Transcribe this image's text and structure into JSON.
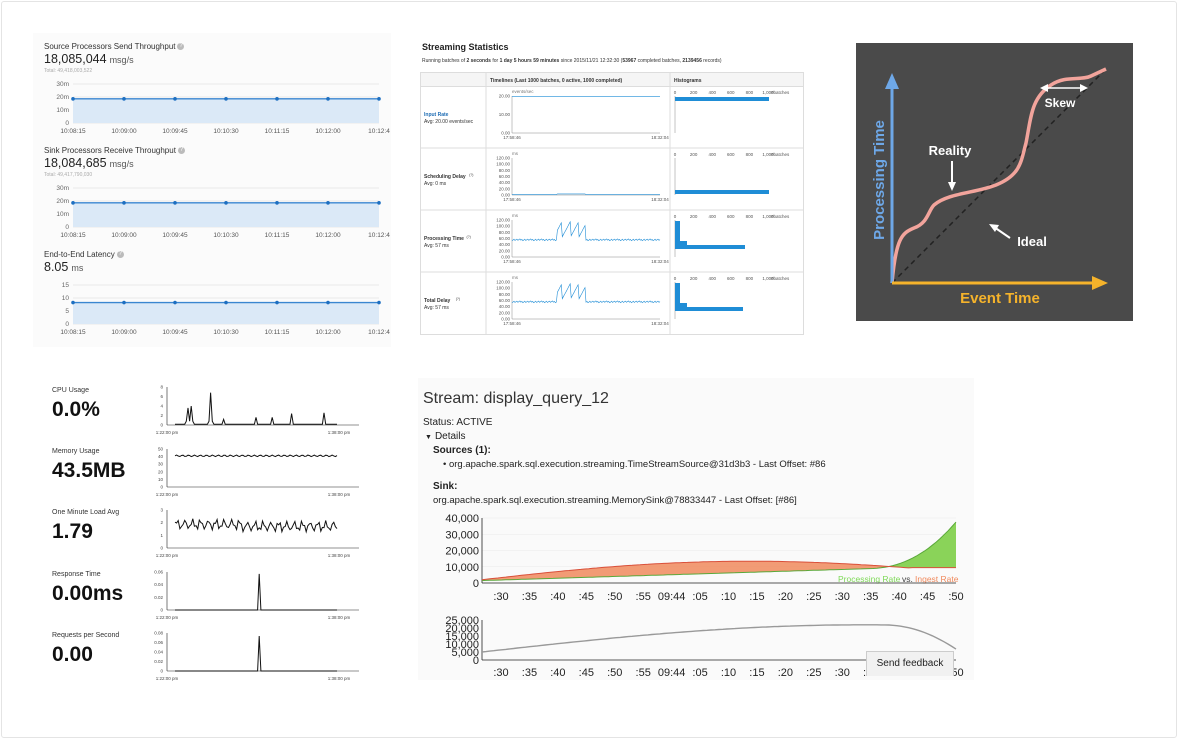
{
  "throughput": {
    "send": {
      "title": "Source Processors Send Throughput",
      "value": "18,085,044",
      "unit": "msg/s",
      "total": "Total: 49,418,003,522"
    },
    "receive": {
      "title": "Sink Processors Receive Throughput",
      "value": "18,084,685",
      "unit": "msg/s",
      "total": "Total: 49,417,790,030"
    },
    "latency": {
      "title": "End-to-End Latency",
      "value": "8.05",
      "unit": "ms"
    },
    "y_ticks_msg": [
      "30m",
      "20m",
      "10m",
      "0"
    ],
    "y_ticks_lat": [
      "15",
      "10",
      "5",
      "0"
    ],
    "x_ticks": [
      "10:08:15",
      "10:09:00",
      "10:09:45",
      "10:10:30",
      "10:11:15",
      "10:12:00",
      "10:12:4"
    ]
  },
  "streaming": {
    "title": "Streaming Statistics",
    "sub_prefix": "Running batches of ",
    "sub_batch": "2 seconds",
    "sub_mid1": " for ",
    "sub_duration": "1 day 5 hours 59 minutes",
    "sub_mid2": " since 2015/11/21 12:32:30 (",
    "sub_completed": "53967",
    "sub_mid3": " completed batches, ",
    "sub_records": "2139456",
    "sub_end": " records)",
    "col_timelines": "Timelines (Last 1000 batches, 0 active, 1000 completed)",
    "col_histograms": "Histograms",
    "rows": [
      {
        "name": "Input Rate",
        "avg": "Avg: 20.00 events/sec",
        "unit": "events/sec",
        "y_ticks": [
          "20.00",
          "10.00",
          "0.00"
        ]
      },
      {
        "name": "Scheduling Delay",
        "sup": "(?)",
        "avg": "Avg: 0 ms",
        "unit": "ms",
        "y_ticks": [
          "120.00",
          "100.00",
          "80.00",
          "60.00",
          "40.00",
          "20.00",
          "0.00"
        ]
      },
      {
        "name": "Processing Time",
        "sup": "(?)",
        "avg": "Avg: 57 ms",
        "unit": "ms",
        "y_ticks": [
          "120.00",
          "100.00",
          "80.00",
          "60.00",
          "40.00",
          "20.00",
          "0.00"
        ]
      },
      {
        "name": "Total Delay",
        "sup": "(?)",
        "avg": "Avg: 57 ms",
        "unit": "ms",
        "y_ticks": [
          "120.00",
          "100.00",
          "80.00",
          "60.00",
          "40.00",
          "20.00",
          "0.00"
        ]
      }
    ],
    "time_start": "17:58:46",
    "time_end": "18:32:04",
    "hist_ticks": [
      "0",
      "200",
      "400",
      "600",
      "800",
      "1,000"
    ],
    "hist_unit": "#batches",
    "colors": {
      "series": "#1f8dd6",
      "axis": "#888888"
    }
  },
  "concept": {
    "ylabel": "Processing Time",
    "xlabel": "Event Time",
    "reality": "Reality",
    "ideal": "Ideal",
    "skew": "Skew",
    "colors": {
      "y_axis": "#6ea8e8",
      "x_axis": "#f5b32b",
      "reality": "#f2a49c",
      "bg": "#4a4a4a"
    }
  },
  "system": {
    "metrics": [
      {
        "label": "CPU Usage",
        "value": "0.0%",
        "y_ticks": [
          "8",
          "6",
          "4",
          "2",
          "0"
        ]
      },
      {
        "label": "Memory Usage",
        "value": "43.5MB",
        "y_ticks": [
          "50",
          "40",
          "30",
          "20",
          "10",
          "0"
        ]
      },
      {
        "label": "One Minute Load Avg",
        "value": "1.79",
        "y_ticks": [
          "3",
          "2",
          "1",
          "0"
        ]
      },
      {
        "label": "Response Time",
        "value": "0.00ms",
        "y_ticks": [
          "0.06",
          "0.04",
          "0.02",
          "0"
        ]
      },
      {
        "label": "Requests per Second",
        "value": "0.00",
        "y_ticks": [
          "0.08",
          "0.06",
          "0.04",
          "0.02",
          "0"
        ]
      }
    ],
    "time_start": "1:22:00 pm",
    "time_end": "1:38:00 pm"
  },
  "spark": {
    "title": "Stream: display_query_12",
    "status": "Status: ACTIVE",
    "details": "Details",
    "sources_label": "Sources (1):",
    "source_item": "org.apache.spark.sql.execution.streaming.TimeStreamSource@31d3b3 - Last Offset: #86",
    "sink_label": "Sink:",
    "sink_item": "org.apache.spark.sql.execution.streaming.MemorySink@78833447 - Last Offset: [#86]",
    "chart1_y_ticks": [
      "40,000",
      "30,000",
      "20,000",
      "10,000",
      "0"
    ],
    "chart2_y_ticks": [
      "25,000",
      "20,000",
      "15,000",
      "10,000",
      "5,000",
      "0"
    ],
    "x_ticks": [
      ":30",
      ":35",
      ":40",
      ":45",
      ":50",
      ":55",
      "09:44",
      ":05",
      ":10",
      ":15",
      ":20",
      ":25",
      ":30",
      ":35",
      ":40",
      ":45",
      ":50"
    ],
    "legend_processing": "Processing Rate",
    "legend_vs": "vs.",
    "legend_ingest": "Ingest Rate",
    "feedback": "Send feedback",
    "colors": {
      "processing": "#7ed957",
      "ingest": "#f08a5d",
      "line2": "#999999"
    }
  }
}
